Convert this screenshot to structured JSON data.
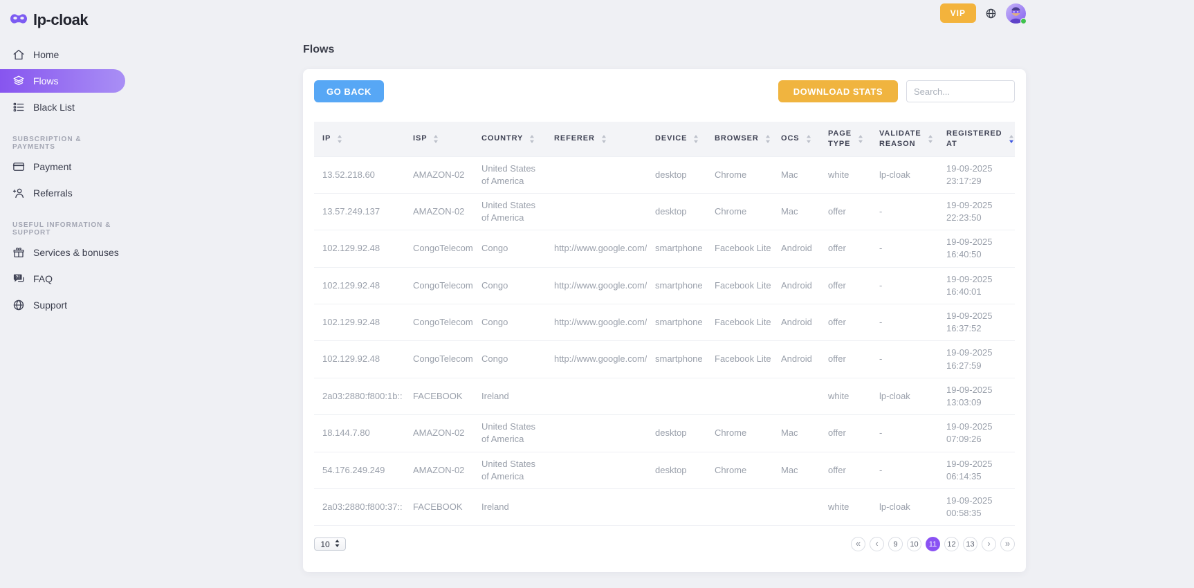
{
  "brand": {
    "name": "lp-cloak",
    "logo_icon": "mask-icon"
  },
  "header": {
    "vip_label": "VIP",
    "icons": [
      "language-globe-icon",
      "user-avatar"
    ],
    "user_status": "online"
  },
  "sidebar": {
    "items": [
      {
        "label": "Home",
        "icon": "home-icon",
        "active": false
      },
      {
        "label": "Flows",
        "icon": "flows-icon",
        "active": true
      },
      {
        "label": "Black List",
        "icon": "black-list-icon",
        "active": false
      }
    ],
    "sections": [
      {
        "label": "SUBSCRIPTION & PAYMENTS",
        "items": [
          {
            "label": "Payment",
            "icon": "payment-icon",
            "active": false
          },
          {
            "label": "Referrals",
            "icon": "referrals-icon",
            "active": false
          }
        ]
      },
      {
        "label": "USEFUL INFORMATION & SUPPORT",
        "items": [
          {
            "label": "Services & bonuses",
            "icon": "gift-icon",
            "active": false
          },
          {
            "label": "FAQ",
            "icon": "faq-icon",
            "active": false
          },
          {
            "label": "Support",
            "icon": "support-globe-icon",
            "active": false
          }
        ]
      }
    ]
  },
  "page": {
    "title": "Flows"
  },
  "toolbar": {
    "go_back_label": "GO BACK",
    "download_stats_label": "DOWNLOAD STATS",
    "search_placeholder": "Search..."
  },
  "table": {
    "columns": [
      {
        "label": "IP",
        "sort": "none"
      },
      {
        "label": "ISP",
        "sort": "none"
      },
      {
        "label": "COUNTRY",
        "sort": "none"
      },
      {
        "label": "REFERER",
        "sort": "none"
      },
      {
        "label": "DEVICE",
        "sort": "none"
      },
      {
        "label": "BROWSER",
        "sort": "none"
      },
      {
        "label": "OCS",
        "sort": "none"
      },
      {
        "label": "PAGE TYPE",
        "sort": "none"
      },
      {
        "label": "VALIDATE REASON",
        "sort": "none"
      },
      {
        "label": "REGISTERED AT",
        "sort": "desc"
      }
    ],
    "rows": [
      [
        "13.52.218.60",
        "AMAZON-02",
        "United States of America",
        "",
        "desktop",
        "Chrome",
        "Mac",
        "white",
        "lp-cloak",
        "19-09-2025 23:17:29"
      ],
      [
        "13.57.249.137",
        "AMAZON-02",
        "United States of America",
        "",
        "desktop",
        "Chrome",
        "Mac",
        "offer",
        "-",
        "19-09-2025 22:23:50"
      ],
      [
        "102.129.92.48",
        "CongoTelecom",
        "Congo",
        "http://www.google.com/",
        "smartphone",
        "Facebook Lite",
        "Android",
        "offer",
        "-",
        "19-09-2025 16:40:50"
      ],
      [
        "102.129.92.48",
        "CongoTelecom",
        "Congo",
        "http://www.google.com/",
        "smartphone",
        "Facebook Lite",
        "Android",
        "offer",
        "-",
        "19-09-2025 16:40:01"
      ],
      [
        "102.129.92.48",
        "CongoTelecom",
        "Congo",
        "http://www.google.com/",
        "smartphone",
        "Facebook Lite",
        "Android",
        "offer",
        "-",
        "19-09-2025 16:37:52"
      ],
      [
        "102.129.92.48",
        "CongoTelecom",
        "Congo",
        "http://www.google.com/",
        "smartphone",
        "Facebook Lite",
        "Android",
        "offer",
        "-",
        "19-09-2025 16:27:59"
      ],
      [
        "2a03:2880:f800:1b::",
        "FACEBOOK",
        "Ireland",
        "",
        "",
        "",
        "",
        "white",
        "lp-cloak",
        "19-09-2025 13:03:09"
      ],
      [
        "18.144.7.80",
        "AMAZON-02",
        "United States of America",
        "",
        "desktop",
        "Chrome",
        "Mac",
        "offer",
        "-",
        "19-09-2025 07:09:26"
      ],
      [
        "54.176.249.249",
        "AMAZON-02",
        "United States of America",
        "",
        "desktop",
        "Chrome",
        "Mac",
        "offer",
        "-",
        "19-09-2025 06:14:35"
      ],
      [
        "2a03:2880:f800:37::",
        "FACEBOOK",
        "Ireland",
        "",
        "",
        "",
        "",
        "white",
        "lp-cloak",
        "19-09-2025 00:58:35"
      ]
    ]
  },
  "pagination": {
    "page_size": "10",
    "pages": [
      "9",
      "10",
      "11",
      "12",
      "13"
    ],
    "active_page": "11",
    "controls": [
      "first-page-icon",
      "prev-page-icon",
      "next-page-icon",
      "last-page-icon"
    ]
  },
  "colors": {
    "accent_purple": "#8a52f3",
    "active_nav_gradient_start": "#8755ef",
    "active_nav_gradient_end": "#a98ff5",
    "vip_orange": "#f3b33c",
    "download_orange": "#f0b43f",
    "go_back_blue": "#57a7f5",
    "sorted_arrow_blue": "#3d56e0",
    "background_gray": "#eff0f4"
  }
}
